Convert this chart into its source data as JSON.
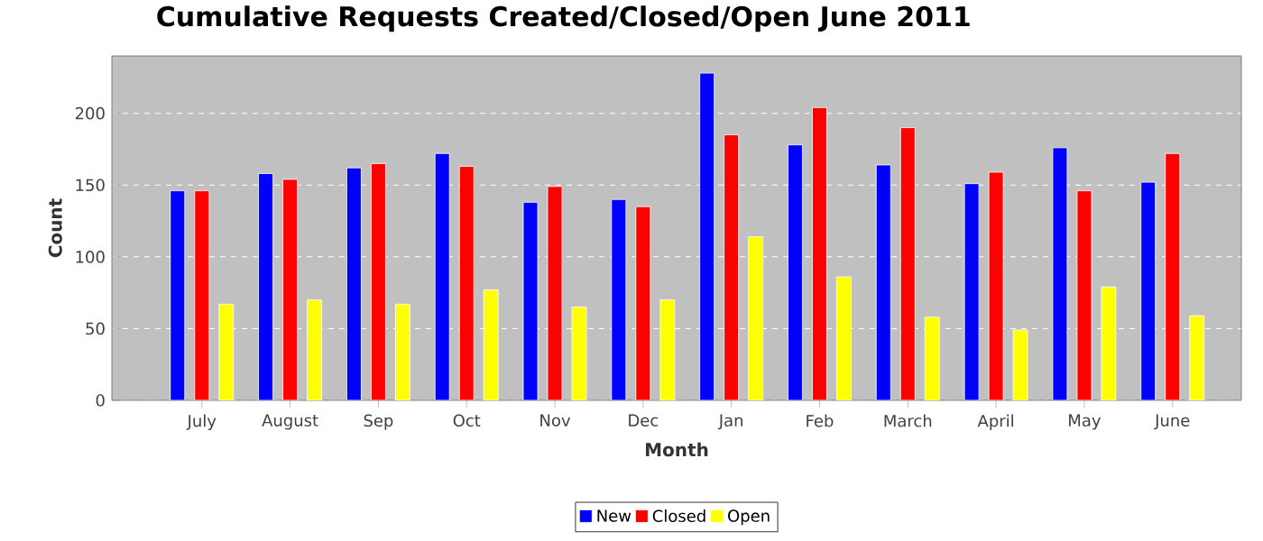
{
  "chart_data": {
    "type": "bar",
    "title": "Cumulative Requests Created/Closed/Open June 2011",
    "xlabel": "Month",
    "ylabel": "Count",
    "categories": [
      "July",
      "August",
      "Sep",
      "Oct",
      "Nov",
      "Dec",
      "Jan",
      "Feb",
      "March",
      "April",
      "May",
      "June"
    ],
    "series": [
      {
        "name": "New",
        "color": "#0000ff",
        "values": [
          146,
          158,
          162,
          172,
          138,
          140,
          228,
          178,
          164,
          151,
          176,
          152
        ]
      },
      {
        "name": "Closed",
        "color": "#ff0000",
        "values": [
          146,
          154,
          165,
          163,
          149,
          135,
          185,
          204,
          190,
          159,
          146,
          172
        ]
      },
      {
        "name": "Open",
        "color": "#ffff00",
        "values": [
          67,
          70,
          67,
          77,
          65,
          70,
          114,
          86,
          58,
          49,
          79,
          59
        ]
      }
    ],
    "ylim": [
      0,
      240
    ],
    "yticks": [
      0,
      50,
      100,
      150,
      200
    ],
    "grid": "y",
    "legend": "bottom"
  }
}
